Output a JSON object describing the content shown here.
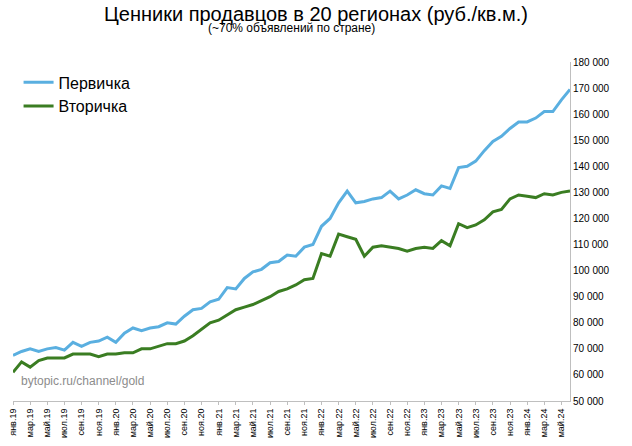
{
  "chart_data": {
    "type": "line",
    "title": "Ценники продавцов в 20 регионах (руб./кв.м.)",
    "subtitle": "(~70% объявлений по стране)",
    "annotations": [
      "bytopic.ru/channel/gold"
    ],
    "categories": [
      "янв.19",
      null,
      "мар.19",
      null,
      "май.19",
      null,
      "июл.19",
      null,
      "сен.19",
      null,
      "ноя.19",
      null,
      "янв.20",
      null,
      "мар.20",
      null,
      "май.20",
      null,
      "июл.20",
      null,
      "сен.20",
      null,
      "ноя.20",
      null,
      "янв.21",
      null,
      "мар.21",
      null,
      "май.21",
      null,
      "июл.21",
      null,
      "сен.21",
      null,
      "ноя.21",
      null,
      "янв.22",
      null,
      "мар.22",
      null,
      "май.22",
      null,
      "июл.22",
      null,
      "сен.22",
      null,
      "ноя.22",
      null,
      "янв.23",
      null,
      "мар.23",
      null,
      "май.23",
      null,
      "июл.23",
      null,
      "сен.23",
      null,
      "ноя.23",
      null,
      "янв.24",
      null,
      "мар.24",
      null,
      "май.24",
      null
    ],
    "series": [
      {
        "name": "Первичка",
        "color": "#5aafe0",
        "values": [
          67500,
          69000,
          70000,
          69000,
          70000,
          70500,
          69500,
          72500,
          71000,
          72500,
          73000,
          74500,
          72500,
          76000,
          78000,
          77000,
          78000,
          78500,
          80000,
          79500,
          82500,
          85000,
          85500,
          88000,
          89000,
          93500,
          93000,
          97000,
          99500,
          100500,
          103000,
          103500,
          106000,
          105500,
          109000,
          110000,
          117000,
          120000,
          126000,
          130500,
          126000,
          126500,
          127500,
          128000,
          130500,
          127500,
          129000,
          131000,
          129500,
          129000,
          132500,
          131500,
          139500,
          140000,
          142000,
          146000,
          149500,
          151500,
          154500,
          157000,
          157000,
          158500,
          161000,
          161000,
          165500,
          169500
        ]
      },
      {
        "name": "Вторичка",
        "color": "#3a7d22",
        "values": [
          61000,
          65000,
          63000,
          65500,
          66500,
          66500,
          66500,
          68000,
          68000,
          68000,
          67000,
          68000,
          68000,
          68500,
          68500,
          70000,
          70000,
          71000,
          72000,
          72000,
          73000,
          75000,
          77500,
          80000,
          81000,
          83000,
          85000,
          86000,
          87000,
          88500,
          90000,
          92000,
          93000,
          94500,
          96500,
          97000,
          106500,
          105500,
          114000,
          113000,
          112000,
          105500,
          109000,
          109500,
          109000,
          108500,
          107500,
          108500,
          109000,
          108500,
          111500,
          109500,
          118000,
          116500,
          117500,
          119500,
          122500,
          123500,
          127500,
          129000,
          128500,
          128000,
          129500,
          129000,
          130000,
          130500
        ]
      }
    ],
    "ylim": [
      50000,
      180000
    ],
    "yticks": [
      {
        "value": 50000,
        "label": "50 000"
      },
      {
        "value": 60000,
        "label": "60 000"
      },
      {
        "value": 70000,
        "label": "70 000"
      },
      {
        "value": 80000,
        "label": "80 000"
      },
      {
        "value": 90000,
        "label": "90 000"
      },
      {
        "value": 100000,
        "label": "100 000"
      },
      {
        "value": 110000,
        "label": "110 000"
      },
      {
        "value": 120000,
        "label": "120 000"
      },
      {
        "value": 130000,
        "label": "130 000"
      },
      {
        "value": 140000,
        "label": "140 000"
      },
      {
        "value": 150000,
        "label": "150 000"
      },
      {
        "value": 160000,
        "label": "160 000"
      },
      {
        "value": 170000,
        "label": "170 000"
      },
      {
        "value": 180000,
        "label": "180 000"
      }
    ],
    "grid": false,
    "legend": "upper left"
  }
}
